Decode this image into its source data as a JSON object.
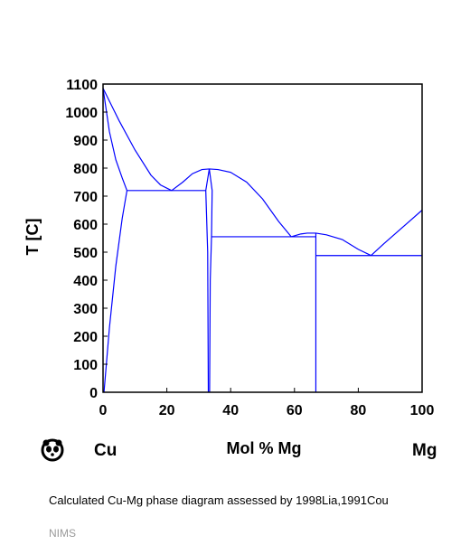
{
  "chart_data": {
    "type": "line",
    "title": "",
    "xlabel": "Mol % Mg",
    "ylabel": "T [C]",
    "xlim": [
      0,
      100
    ],
    "ylim": [
      0,
      1100
    ],
    "x_ticks": [
      0,
      20,
      40,
      60,
      80,
      100
    ],
    "y_ticks": [
      0,
      100,
      200,
      300,
      400,
      500,
      600,
      700,
      800,
      900,
      1000,
      1100
    ],
    "grid": false,
    "line_color": "#0000ff",
    "left_element": "Cu",
    "right_element": "Mg",
    "series": [
      {
        "values": [
          [
            0,
            1085
          ],
          [
            5,
            970
          ],
          [
            10,
            865
          ],
          [
            15,
            775
          ],
          [
            18,
            740
          ],
          [
            21.5,
            720
          ]
        ]
      },
      {
        "values": [
          [
            0,
            1085
          ],
          [
            2,
            930
          ],
          [
            4,
            830
          ],
          [
            6,
            765
          ],
          [
            7.5,
            720
          ]
        ]
      },
      {
        "values": [
          [
            7.5,
            720
          ],
          [
            6,
            620
          ],
          [
            4,
            450
          ],
          [
            2,
            230
          ],
          [
            0.3,
            0
          ]
        ]
      },
      {
        "values": [
          [
            21.5,
            720
          ],
          [
            25,
            750
          ],
          [
            28,
            780
          ],
          [
            31,
            795
          ],
          [
            33.3,
            797
          ],
          [
            36,
            795
          ],
          [
            40,
            785
          ],
          [
            45,
            750
          ],
          [
            50,
            690
          ],
          [
            55,
            610
          ],
          [
            59,
            555
          ]
        ]
      },
      {
        "values": [
          [
            33.3,
            797
          ],
          [
            32.2,
            720
          ],
          [
            32.8,
            500
          ],
          [
            33,
            0
          ]
        ]
      },
      {
        "values": [
          [
            33.3,
            797
          ],
          [
            34.2,
            720
          ],
          [
            34,
            555
          ],
          [
            33.6,
            400
          ],
          [
            33.4,
            0
          ]
        ]
      },
      {
        "values": [
          [
            59,
            555
          ],
          [
            62,
            565
          ],
          [
            64,
            568
          ],
          [
            66.7,
            568
          ],
          [
            70,
            562
          ],
          [
            75,
            545
          ],
          [
            80,
            510
          ],
          [
            84,
            488
          ]
        ]
      },
      {
        "values": [
          [
            84,
            488
          ],
          [
            88,
            530
          ],
          [
            92,
            570
          ],
          [
            96,
            610
          ],
          [
            100,
            650
          ]
        ]
      },
      {
        "values": [
          [
            66.7,
            568
          ],
          [
            66.7,
            0
          ]
        ]
      },
      {
        "values": [
          [
            7.5,
            720
          ],
          [
            32.2,
            720
          ]
        ]
      },
      {
        "values": [
          [
            34.1,
            555
          ],
          [
            66.7,
            555
          ]
        ]
      },
      {
        "values": [
          [
            66.7,
            488
          ],
          [
            100,
            488
          ]
        ]
      }
    ]
  },
  "caption": "Calculated Cu-Mg phase diagram assessed by 1998Lia,1991Cou",
  "credit": "NIMS",
  "logo_icon": "panda-logo-icon"
}
